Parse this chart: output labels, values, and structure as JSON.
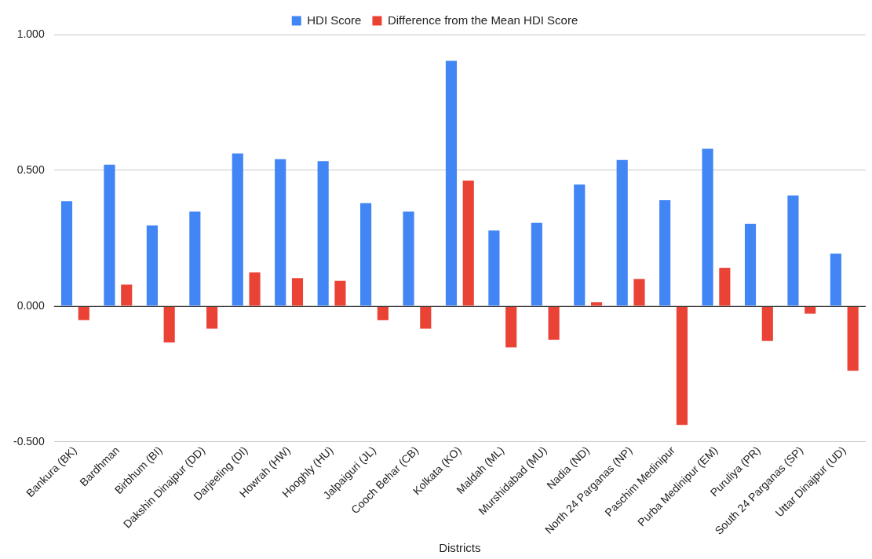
{
  "chart_data": {
    "type": "bar",
    "xlabel": "Districts",
    "categories": [
      "Bankura (BK)",
      "Bardhman",
      "Birbhum (BI)",
      "Dakshin Dinajpur (DD)",
      "Darjeeling (DI)",
      "Howrah (HW)",
      "Hooghly (HU)",
      "Jalpaiguri (JL)",
      "Cooch Behar (CB)",
      "Kolkata (KO)",
      "Maldah (ML)",
      "Murshidabad (MU)",
      "Nadia (ND)",
      "North 24 Parganas (NP)",
      "Paschim Medinipur",
      "Purba Medinipur (EM)",
      "Puruliya (PR)",
      "South 24 Parganas (SP)",
      "Uttar Dinajpur (UD)"
    ],
    "series": [
      {
        "name": "HDI Score",
        "color": "#4285f4",
        "values": [
          0.386,
          0.521,
          0.297,
          0.348,
          0.562,
          0.541,
          0.534,
          0.379,
          0.348,
          0.903,
          0.279,
          0.307,
          0.448,
          0.538,
          0.39,
          0.579,
          0.303,
          0.407,
          0.193
        ]
      },
      {
        "name": "Difference from the Mean HDI Score",
        "color": "#ea4335",
        "values": [
          -0.052,
          0.079,
          -0.134,
          -0.083,
          0.124,
          0.103,
          0.093,
          -0.052,
          -0.083,
          0.462,
          -0.152,
          -0.124,
          0.014,
          0.1,
          -0.438,
          0.141,
          -0.128,
          -0.028,
          -0.238
        ]
      }
    ],
    "ylim": [
      -0.5,
      1.0
    ],
    "yticks": [
      {
        "value": -0.5,
        "label": "-0.500"
      },
      {
        "value": 0,
        "label": "0.000"
      },
      {
        "value": 0.5,
        "label": "0.500"
      },
      {
        "value": 1.0,
        "label": "1.000"
      }
    ],
    "grid": "y",
    "legend": "top"
  }
}
